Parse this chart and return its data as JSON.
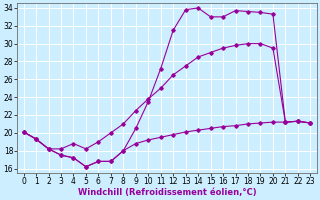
{
  "title": "",
  "xlabel": "Windchill (Refroidissement éolien,°C)",
  "ylabel": "",
  "bg_color": "#cceeff",
  "grid_color": "#ffffff",
  "line_color": "#990099",
  "xlim": [
    -0.5,
    23.5
  ],
  "ylim": [
    15.5,
    34.5
  ],
  "xticks": [
    0,
    1,
    2,
    3,
    4,
    5,
    6,
    7,
    8,
    9,
    10,
    11,
    12,
    13,
    14,
    15,
    16,
    17,
    18,
    19,
    20,
    21,
    22,
    23
  ],
  "yticks": [
    16,
    18,
    20,
    22,
    24,
    26,
    28,
    30,
    32,
    34
  ],
  "line1_x": [
    0,
    1,
    2,
    3,
    4,
    5,
    6,
    7,
    8,
    9,
    10,
    11,
    12,
    13,
    14,
    15,
    16,
    17,
    18,
    19,
    20,
    21,
    22,
    23
  ],
  "line1_y": [
    20.1,
    19.3,
    18.2,
    17.5,
    17.2,
    16.2,
    16.8,
    16.8,
    18.0,
    20.5,
    23.5,
    27.2,
    31.5,
    33.8,
    34.0,
    33.0,
    33.0,
    33.7,
    33.6,
    33.5,
    33.3,
    21.2,
    21.3,
    21.1
  ],
  "line2_x": [
    0,
    1,
    2,
    3,
    4,
    5,
    6,
    7,
    8,
    9,
    10,
    11,
    12,
    13,
    14,
    15,
    16,
    17,
    18,
    19,
    20,
    21,
    22,
    23
  ],
  "line2_y": [
    20.1,
    19.3,
    18.2,
    18.2,
    18.8,
    18.2,
    19.0,
    20.0,
    21.0,
    22.5,
    23.8,
    25.0,
    26.5,
    27.5,
    28.5,
    29.0,
    29.5,
    29.8,
    30.0,
    30.0,
    29.5,
    21.2,
    21.3,
    21.1
  ],
  "line3_x": [
    0,
    1,
    2,
    3,
    4,
    5,
    6,
    7,
    8,
    9,
    10,
    11,
    12,
    13,
    14,
    15,
    16,
    17,
    18,
    19,
    20,
    21,
    22,
    23
  ],
  "line3_y": [
    20.1,
    19.3,
    18.2,
    17.5,
    17.2,
    16.2,
    16.8,
    16.8,
    18.0,
    18.8,
    19.2,
    19.5,
    19.8,
    20.1,
    20.3,
    20.5,
    20.7,
    20.8,
    21.0,
    21.1,
    21.2,
    21.2,
    21.3,
    21.1
  ],
  "marker": "D",
  "markersize": 1.8,
  "linewidth": 0.8,
  "tick_fontsize": 5.5,
  "xlabel_fontsize": 6.0
}
